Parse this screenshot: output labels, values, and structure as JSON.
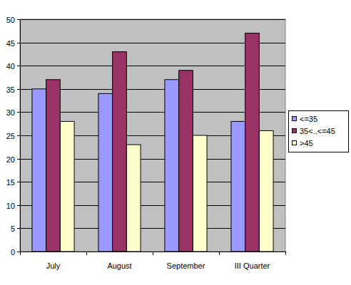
{
  "chart_data": {
    "type": "bar",
    "categories": [
      "July",
      "August",
      "September",
      "III Quarter"
    ],
    "series": [
      {
        "name": "<=35",
        "color": "#9999ff",
        "values": [
          35,
          34,
          37,
          28
        ]
      },
      {
        "name": "35<..<=45",
        "color": "#993366",
        "values": [
          37,
          43,
          39,
          47
        ]
      },
      {
        "name": ">45",
        "color": "#ffffcc",
        "values": [
          28,
          23,
          25,
          26
        ]
      }
    ],
    "ylim": [
      0,
      50
    ],
    "yticks": [
      0,
      5,
      10,
      15,
      20,
      25,
      30,
      35,
      40,
      45,
      50
    ],
    "grid": true,
    "legend": "right"
  }
}
